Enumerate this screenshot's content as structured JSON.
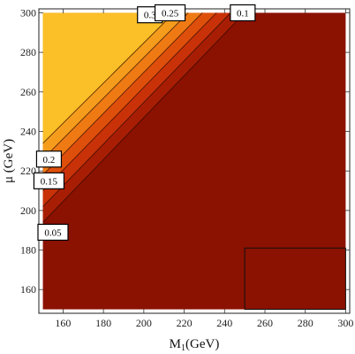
{
  "chart_data": {
    "type": "contour",
    "xlabel": "M",
    "xlabel_sub": "1",
    "xlabel_unit": "(GeV)",
    "ylabel": "μ (GeV)",
    "xlim": [
      148,
      302
    ],
    "ylim": [
      148,
      302
    ],
    "xticks": [
      160,
      180,
      200,
      220,
      240,
      260,
      280,
      300
    ],
    "yticks": [
      160,
      180,
      200,
      220,
      240,
      260,
      280,
      300
    ],
    "data_region": {
      "x": [
        150,
        300
      ],
      "y": [
        150,
        300
      ]
    },
    "contour_levels": [
      "0.05",
      "0.1",
      "0.15",
      "0.2",
      "0.25",
      "0.3"
    ],
    "band_colors": [
      "#8b1100",
      "#a81e05",
      "#c93208",
      "#df4f0c",
      "#ef7a14",
      "#f69c1d",
      "#fbbf27"
    ],
    "contour_lines": [
      {
        "level": "0.05",
        "points": [
          [
            150,
            194
          ],
          [
            250,
            300
          ]
        ]
      },
      {
        "level": "0.1",
        "points": [
          [
            150,
            202
          ],
          [
            243,
            300
          ]
        ]
      },
      {
        "level": "0.15",
        "points": [
          [
            150,
            210
          ],
          [
            236,
            300
          ]
        ]
      },
      {
        "level": "0.2",
        "points": [
          [
            150,
            218
          ],
          [
            229,
            300
          ]
        ]
      },
      {
        "level": "0.25",
        "points": [
          [
            150,
            226
          ],
          [
            222,
            300
          ]
        ]
      },
      {
        "level": "0.3",
        "points": [
          [
            150,
            234
          ],
          [
            215,
            300
          ]
        ]
      }
    ],
    "boundary_line": {
      "points": [
        [
          150,
          242
        ],
        [
          208,
          300
        ]
      ]
    },
    "contour_label_positions": [
      {
        "text": "0.3",
        "x": 203,
        "y": 299
      },
      {
        "text": "0.25",
        "x": 213,
        "y": 300
      },
      {
        "text": "0.1",
        "x": 249,
        "y": 300
      },
      {
        "text": "0.2",
        "x": 153,
        "y": 226
      },
      {
        "text": "0.15",
        "x": 153,
        "y": 215
      },
      {
        "text": "0.05",
        "x": 155,
        "y": 189
      }
    ],
    "rect_annotation": {
      "x": [
        250,
        300
      ],
      "y": [
        150,
        181
      ]
    }
  }
}
